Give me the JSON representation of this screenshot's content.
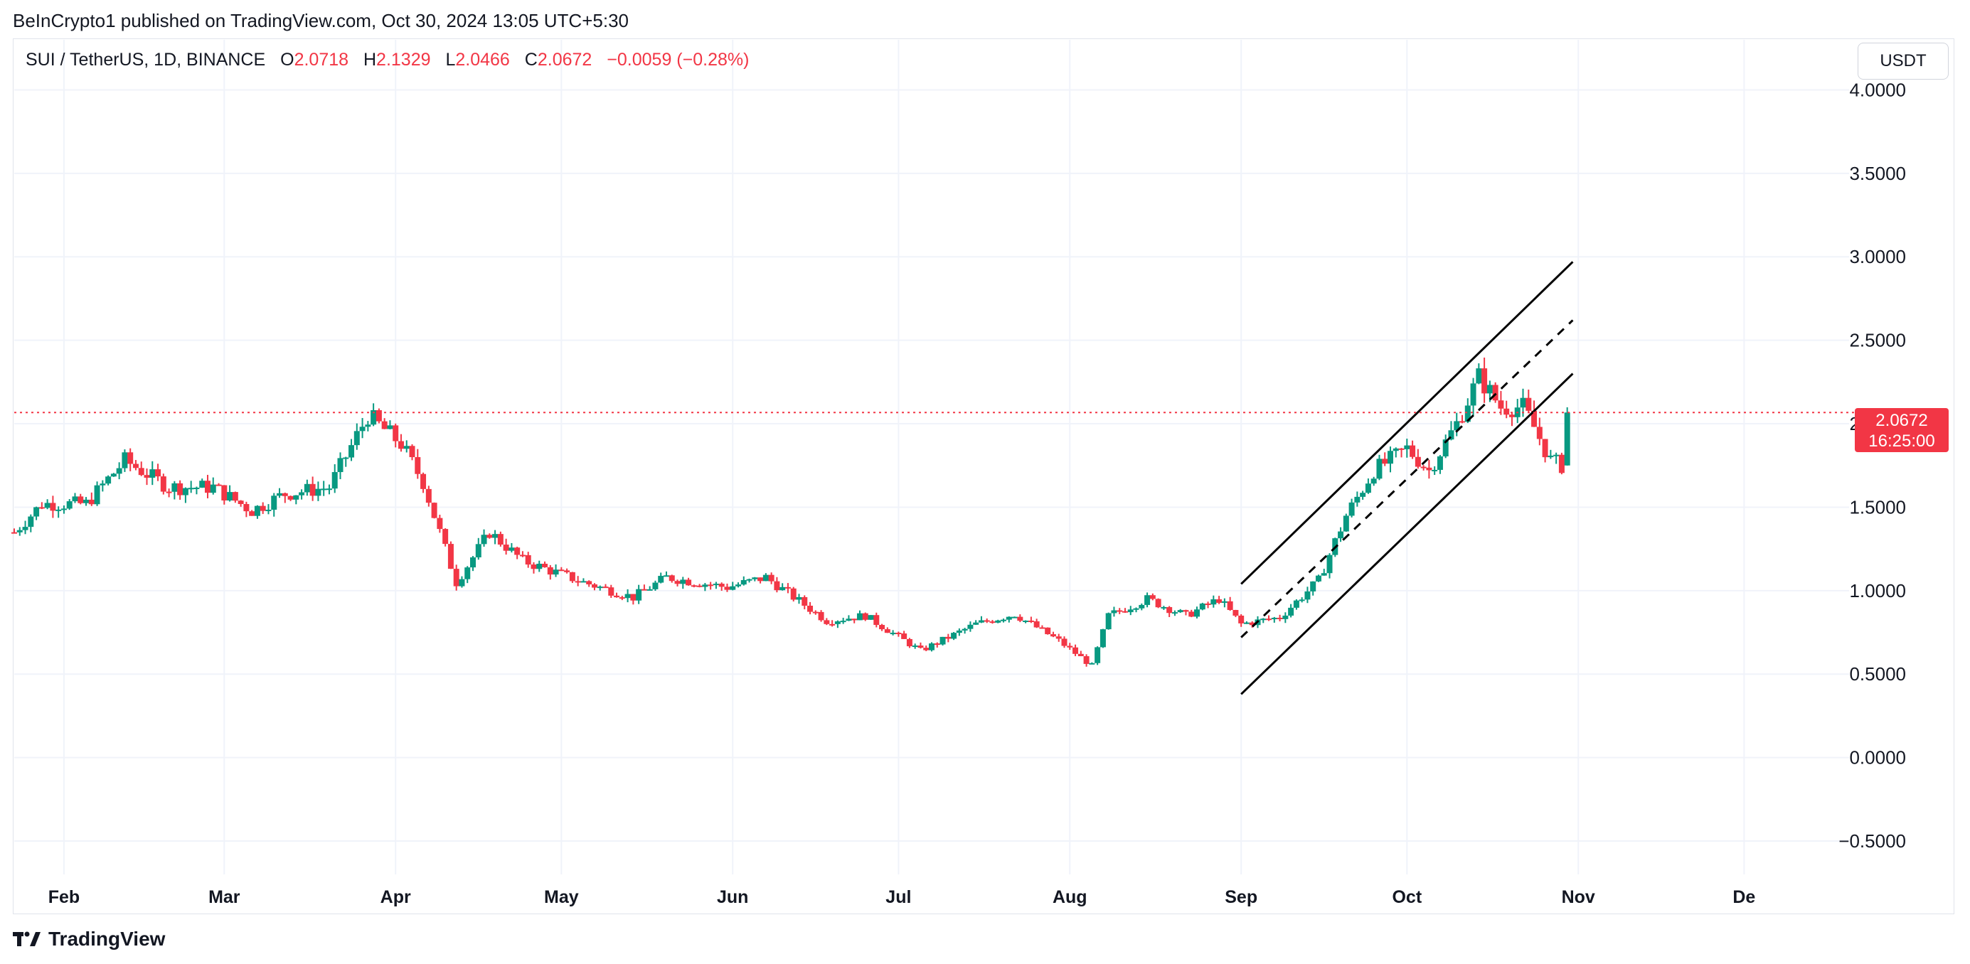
{
  "header": {
    "published_text": "BeInCrypto1 published on TradingView.com, Oct 30, 2024 13:05 UTC+5:30"
  },
  "legend": {
    "symbol": "SUI / TetherUS, 1D, BINANCE",
    "open_label": "O",
    "open": "2.0718",
    "high_label": "H",
    "high": "2.1329",
    "low_label": "L",
    "low": "2.0466",
    "close_label": "C",
    "close": "2.0672",
    "change": "−0.0059 (−0.28%)"
  },
  "toolbar": {
    "currency_label": "USDT"
  },
  "price_tag": {
    "price": "2.0672",
    "countdown": "16:25:00"
  },
  "footer": {
    "brand": "TradingView"
  },
  "colors": {
    "up": "#089981",
    "down": "#f23645",
    "grid": "#f0f3fa",
    "text": "#131722"
  },
  "chart_data": {
    "type": "candlestick",
    "ylim": [
      -0.7,
      4.3
    ],
    "y_ticks": [
      "4.0000",
      "3.5000",
      "3.0000",
      "2.5000",
      "2.0000",
      "1.5000",
      "1.0000",
      "0.5000",
      "0.0000",
      "−0.5000"
    ],
    "y_tick_values": [
      4.0,
      3.5,
      3.0,
      2.5,
      2.0,
      1.5,
      1.0,
      0.5,
      0.0,
      -0.5
    ],
    "x_tick_labels": [
      "Feb",
      "Mar",
      "Apr",
      "May",
      "Jun",
      "Jul",
      "Aug",
      "Sep",
      "Oct",
      "Nov",
      "De"
    ],
    "x_tick_dates": [
      "2024-02-01",
      "2024-03-01",
      "2024-04-01",
      "2024-05-01",
      "2024-06-01",
      "2024-07-01",
      "2024-08-01",
      "2024-09-01",
      "2024-10-01",
      "2024-11-01",
      "2024-12-01"
    ],
    "x_range": [
      "2024-01-23",
      "2024-12-20"
    ],
    "last_price": 2.0672,
    "ohlc_keypoints": [
      {
        "date": "2024-01-23",
        "close": 1.35
      },
      {
        "date": "2024-01-28",
        "close": 1.52
      },
      {
        "date": "2024-02-05",
        "close": 1.52
      },
      {
        "date": "2024-02-12",
        "close": 1.78
      },
      {
        "date": "2024-02-20",
        "close": 1.62
      },
      {
        "date": "2024-02-28",
        "close": 1.62
      },
      {
        "date": "2024-03-06",
        "close": 1.48
      },
      {
        "date": "2024-03-12",
        "close": 1.58
      },
      {
        "date": "2024-03-20",
        "close": 1.62
      },
      {
        "date": "2024-03-27",
        "close": 2.05
      },
      {
        "date": "2024-04-02",
        "close": 1.88
      },
      {
        "date": "2024-04-06",
        "close": 1.65
      },
      {
        "date": "2024-04-12",
        "close": 1.05
      },
      {
        "date": "2024-04-18",
        "close": 1.35
      },
      {
        "date": "2024-04-24",
        "close": 1.18
      },
      {
        "date": "2024-05-05",
        "close": 1.05
      },
      {
        "date": "2024-05-14",
        "close": 0.96
      },
      {
        "date": "2024-05-20",
        "close": 1.08
      },
      {
        "date": "2024-05-31",
        "close": 1.02
      },
      {
        "date": "2024-06-07",
        "close": 1.08
      },
      {
        "date": "2024-06-18",
        "close": 0.82
      },
      {
        "date": "2024-06-25",
        "close": 0.85
      },
      {
        "date": "2024-07-05",
        "close": 0.64
      },
      {
        "date": "2024-07-15",
        "close": 0.8
      },
      {
        "date": "2024-07-22",
        "close": 0.86
      },
      {
        "date": "2024-07-30",
        "close": 0.7
      },
      {
        "date": "2024-08-05",
        "close": 0.55
      },
      {
        "date": "2024-08-08",
        "close": 0.85
      },
      {
        "date": "2024-08-15",
        "close": 0.95
      },
      {
        "date": "2024-08-22",
        "close": 0.85
      },
      {
        "date": "2024-08-28",
        "close": 0.95
      },
      {
        "date": "2024-09-01",
        "close": 0.8
      },
      {
        "date": "2024-09-08",
        "close": 0.84
      },
      {
        "date": "2024-09-15",
        "close": 1.06
      },
      {
        "date": "2024-09-20",
        "close": 1.45
      },
      {
        "date": "2024-09-25",
        "close": 1.72
      },
      {
        "date": "2024-10-01",
        "close": 1.85
      },
      {
        "date": "2024-10-05",
        "close": 1.72
      },
      {
        "date": "2024-10-10",
        "close": 2.0
      },
      {
        "date": "2024-10-14",
        "close": 2.28
      },
      {
        "date": "2024-10-18",
        "close": 2.1
      },
      {
        "date": "2024-10-22",
        "close": 2.1
      },
      {
        "date": "2024-10-24",
        "close": 1.98
      },
      {
        "date": "2024-10-27",
        "close": 1.78
      },
      {
        "date": "2024-10-29",
        "close": 1.75
      },
      {
        "date": "2024-10-30",
        "close": 2.0672
      }
    ],
    "channel_lines": [
      {
        "style": "solid",
        "from": {
          "date": "2024-09-01",
          "price": 1.04
        },
        "to": {
          "date": "2024-10-31",
          "price": 2.97
        }
      },
      {
        "style": "dashed",
        "from": {
          "date": "2024-09-01",
          "price": 0.72
        },
        "to": {
          "date": "2024-10-31",
          "price": 2.62
        }
      },
      {
        "style": "solid",
        "from": {
          "date": "2024-09-01",
          "price": 0.38
        },
        "to": {
          "date": "2024-10-31",
          "price": 2.3
        }
      }
    ]
  }
}
